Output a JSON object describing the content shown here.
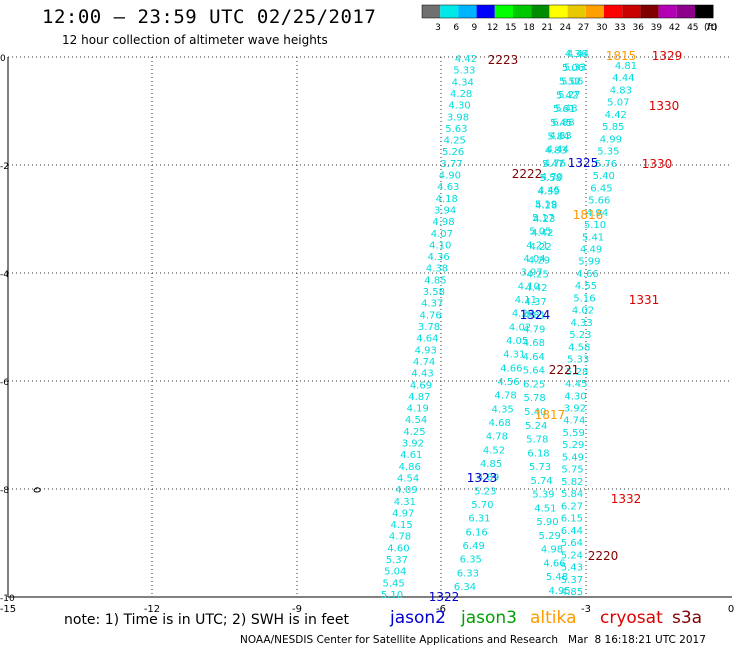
{
  "header": {
    "title": "12:00 – 23:59 UTC 02/25/2017",
    "subtitle": "12 hour collection of altimeter wave heights"
  },
  "legend": {
    "unit": "(ft)",
    "bins": [
      {
        "label": "3",
        "color": "#707070"
      },
      {
        "label": "6",
        "color": "#00e8e8"
      },
      {
        "label": "9",
        "color": "#00b4ff"
      },
      {
        "label": "12",
        "color": "#0000ff"
      },
      {
        "label": "15",
        "color": "#00ff00"
      },
      {
        "label": "18",
        "color": "#00c800"
      },
      {
        "label": "21",
        "color": "#008c00"
      },
      {
        "label": "24",
        "color": "#ffff00"
      },
      {
        "label": "27",
        "color": "#e8c800"
      },
      {
        "label": "30",
        "color": "#ffa000"
      },
      {
        "label": "33",
        "color": "#ff0000"
      },
      {
        "label": "36",
        "color": "#c80000"
      },
      {
        "label": "39",
        "color": "#800000"
      },
      {
        "label": "42",
        "color": "#b400b4"
      },
      {
        "label": "45",
        "color": "#8c008c"
      },
      {
        "label": "70",
        "color": "#000000"
      }
    ]
  },
  "axes": {
    "x_ticks": [
      "-15",
      "-12",
      "-9",
      "-6",
      "-3",
      "0"
    ],
    "y_ticks": [
      "0",
      "-2",
      "-4",
      "-6",
      "-8",
      "-10"
    ]
  },
  "footer": {
    "note": "note: 1) Time is in UTC; 2) SWH is in feet",
    "satellites": [
      {
        "name": "jason2",
        "color": "#0000cc"
      },
      {
        "name": "jason3",
        "color": "#00a000"
      },
      {
        "name": "altika",
        "color": "#ff9900"
      },
      {
        "name": "cryosat",
        "color": "#dd0000"
      },
      {
        "name": "s3a",
        "color": "#800000"
      }
    ],
    "credit": "NOAA/NESDIS Center for Satellite Applications and Research   Mar  8 16:18:21 UTC 2017"
  },
  "colors": {
    "wave_value": "#00dddd",
    "jason2": "#0000cc",
    "altika": "#ff9900",
    "cryosat": "#dd0000",
    "s3a": "#800000"
  },
  "tracks": [
    {
      "name": "track-1",
      "values": [
        "4.42",
        "5.33",
        "4.34",
        "4.28",
        "4.30",
        "3.98",
        "5.63",
        "4.25",
        "5.26",
        "3.77",
        "4.90",
        "4.63",
        "4.18",
        "3.94",
        "4.98",
        "4.07",
        "4.10",
        "4.36",
        "4.38",
        "4.85",
        "3.58",
        "4.37",
        "4.76",
        "3.78",
        "4.64",
        "4.93",
        "4.74",
        "4.43",
        "4.69",
        "4.87",
        "4.19",
        "4.54",
        "4.25",
        "3.92",
        "4.61",
        "4.86",
        "4.54",
        "4.09",
        "4.31",
        "4.97",
        "4.15",
        "4.78",
        "4.60",
        "5.37",
        "5.04",
        "5.45",
        "5.10"
      ]
    },
    {
      "name": "track-2",
      "values": [
        "4.44",
        "5.33",
        "5.06",
        "5.27",
        "5.48",
        "6.88",
        "4.83",
        "4.44",
        "4.76",
        "4.70",
        "4.45",
        "5.19",
        "5.17",
        "5.05",
        "4.21",
        "4.04",
        "3.97",
        "4.10",
        "4.11",
        "4.26",
        "4.02",
        "4.05",
        "4.31",
        "4.66",
        "4.56",
        "4.78",
        "4.35",
        "4.68",
        "4.78",
        "4.52",
        "4.85",
        "4.89",
        "5.23",
        "5.70",
        "6.31",
        "6.16",
        "6.49",
        "6.35",
        "6.33",
        "6.34"
      ]
    },
    {
      "name": "track-3",
      "values": [
        "4.36",
        "5.06",
        "5.52",
        "5.42",
        "5.61",
        "5.45",
        "5.84",
        "4.83",
        "5.47",
        "5.58",
        "4.39",
        "4.28",
        "4.23",
        "4.42",
        "4.22",
        "4.29",
        "4.25",
        "4.42",
        "4.37",
        "4.81",
        "4.79",
        "4.68",
        "4.64",
        "5.64",
        "6.25",
        "5.78",
        "5.40",
        "5.24",
        "5.78",
        "6.18",
        "5.73",
        "5.74",
        "5.39",
        "4.51",
        "5.90",
        "5.29",
        "4.98",
        "4.66",
        "5.48",
        "4.95"
      ]
    },
    {
      "name": "track-4",
      "values": [
        "4.81",
        "4.44",
        "4.83",
        "5.07",
        "4.42",
        "5.85",
        "4.99",
        "5.35",
        "5.76",
        "5.40",
        "6.45",
        "5.66",
        "4.94",
        "5.10",
        "5.41",
        "4.49",
        "5.99",
        "4.66",
        "4.55",
        "5.16",
        "4.02",
        "4.33",
        "5.23",
        "4.58",
        "5.33",
        "5.28",
        "4.45",
        "4.30",
        "3.92",
        "4.74",
        "5.59",
        "5.29",
        "5.49",
        "5.75",
        "5.82",
        "5.84",
        "6.27",
        "6.15",
        "6.44",
        "5.64",
        "5.24",
        "5.43",
        "5.37",
        "4.85"
      ]
    }
  ],
  "passes": [
    {
      "label": "2223",
      "sat": "s3a"
    },
    {
      "label": "1815",
      "sat": "altika"
    },
    {
      "label": "1329",
      "sat": "cryosat"
    },
    {
      "label": "1330",
      "sat": "cryosat"
    },
    {
      "label": "1325",
      "sat": "jason2"
    },
    {
      "label": "2222",
      "sat": "s3a"
    },
    {
      "label": "1330",
      "sat": "cryosat"
    },
    {
      "label": "1816",
      "sat": "altika"
    },
    {
      "label": "1331",
      "sat": "cryosat"
    },
    {
      "label": "1324",
      "sat": "jason2"
    },
    {
      "label": "2221",
      "sat": "s3a"
    },
    {
      "label": "1817",
      "sat": "altika"
    },
    {
      "label": "1323",
      "sat": "jason2"
    },
    {
      "label": "1332",
      "sat": "cryosat"
    },
    {
      "label": "2220",
      "sat": "s3a"
    },
    {
      "label": "1322",
      "sat": "jason2"
    }
  ]
}
